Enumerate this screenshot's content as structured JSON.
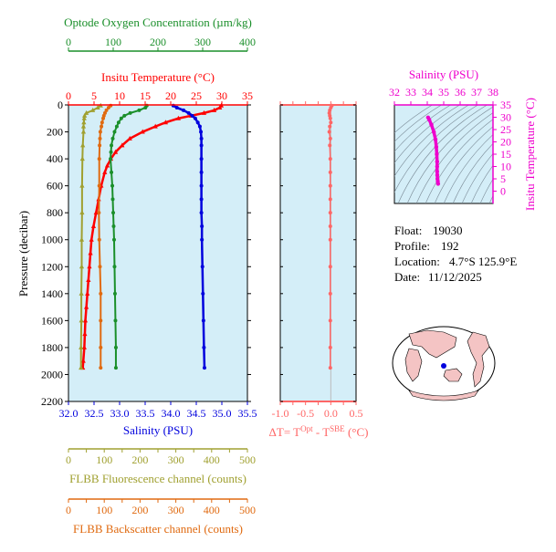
{
  "colors": {
    "oxygen": "#1a8f2a",
    "temperature": "#ff0000",
    "salinity": "#0000dd",
    "fluorescence": "#a0a030",
    "backscatter": "#e06a10",
    "delta_t": "#ff6666",
    "ts_panel": "#ee00cc",
    "plot_bg": "#d4eef8"
  },
  "info": {
    "float_label": "Float:",
    "float_value": "19030",
    "profile_label": "Profile:",
    "profile_value": "192",
    "location_label": "Location:",
    "location_value": "4.7°S  125.9°E",
    "date_label": "Date:",
    "date_value": "11/12/2025"
  },
  "chart_data": [
    {
      "type": "line",
      "id": "main-profile",
      "ylabel": "Pressure (decibar)",
      "ylim": [
        2200,
        0
      ],
      "yticks": [
        0,
        200,
        400,
        600,
        800,
        1000,
        1200,
        1400,
        1600,
        1800,
        2000,
        2200
      ],
      "axes": {
        "oxygen": {
          "label": "Optode Oxygen Concentration (µm/kg)",
          "min": 0,
          "max": 400,
          "ticks": [
            0,
            100,
            200,
            300,
            400
          ]
        },
        "temperature": {
          "label": "Insitu Temperature (°C)",
          "min": 0,
          "max": 35,
          "ticks": [
            0,
            5,
            10,
            15,
            20,
            25,
            30,
            35
          ]
        },
        "salinity": {
          "label": "Salinity (PSU)",
          "min": 32.0,
          "max": 35.5,
          "ticks": [
            "32.0",
            "32.5",
            "33.0",
            "33.5",
            "34.0",
            "34.5",
            "35.0",
            "35.5"
          ]
        },
        "fluorescence": {
          "label": "FLBB Fluorescence channel (counts)",
          "min": 0,
          "max": 500,
          "ticks": [
            0,
            50,
            100,
            150,
            200,
            250,
            300,
            350,
            400,
            450,
            500
          ]
        },
        "backscatter": {
          "label": "FLBB Backscatter channel (counts)",
          "min": 0,
          "max": 500,
          "ticks": [
            0,
            50,
            100,
            150,
            200,
            250,
            300,
            350,
            400,
            450,
            500
          ]
        }
      },
      "series": [
        {
          "key": "temperature",
          "p": [
            5,
            20,
            40,
            60,
            80,
            100,
            130,
            160,
            200,
            250,
            300,
            350,
            400,
            450,
            500,
            600,
            700,
            800,
            900,
            1000,
            1100,
            1200,
            1300,
            1400,
            1500,
            1600,
            1700,
            1800,
            1900,
            1950
          ],
          "v": [
            29.9,
            29.6,
            28.5,
            26.5,
            24,
            21.5,
            19,
            17,
            14.5,
            12,
            10.5,
            9.2,
            8.3,
            7.6,
            7.1,
            6.4,
            5.9,
            5.4,
            4.9,
            4.5,
            4.3,
            4.1,
            3.9,
            3.7,
            3.5,
            3.3,
            3.2,
            3.1,
            2.9,
            2.8
          ]
        },
        {
          "key": "salinity",
          "p": [
            5,
            20,
            40,
            60,
            80,
            100,
            130,
            160,
            200,
            250,
            300,
            400,
            500,
            600,
            700,
            800,
            900,
            1000,
            1200,
            1400,
            1600,
            1800,
            1950
          ],
          "v": [
            34.05,
            34.12,
            34.25,
            34.35,
            34.42,
            34.48,
            34.53,
            34.57,
            34.59,
            34.6,
            34.6,
            34.6,
            34.6,
            34.6,
            34.6,
            34.6,
            34.61,
            34.61,
            34.62,
            34.63,
            34.64,
            34.65,
            34.66
          ]
        },
        {
          "key": "oxygen",
          "p": [
            5,
            20,
            40,
            60,
            80,
            100,
            130,
            160,
            200,
            250,
            300,
            350,
            400,
            500,
            600,
            700,
            800,
            900,
            1000,
            1200,
            1400,
            1600,
            1800,
            1950
          ],
          "v": [
            175,
            172,
            158,
            138,
            125,
            118,
            112,
            108,
            103,
            99,
            96,
            95,
            94,
            96,
            98,
            99,
            100,
            101,
            102,
            103,
            104,
            105,
            106,
            106
          ]
        },
        {
          "key": "fluorescence",
          "p": [
            5,
            20,
            40,
            60,
            80,
            100,
            130,
            160,
            200,
            300,
            400,
            600,
            800,
            1000,
            1200,
            1400,
            1600,
            1800,
            1950
          ],
          "v": [
            90,
            82,
            68,
            50,
            45,
            44,
            43,
            42,
            42,
            40,
            39,
            38,
            38,
            37,
            37,
            36,
            36,
            35,
            35
          ]
        },
        {
          "key": "backscatter",
          "p": [
            5,
            20,
            40,
            60,
            80,
            100,
            130,
            160,
            200,
            250,
            300,
            400,
            600,
            800,
            1000,
            1200,
            1400,
            1600,
            1800,
            1950
          ],
          "v": [
            118,
            112,
            106,
            102,
            99,
            97,
            94,
            92,
            89,
            88,
            87,
            86,
            86,
            85,
            86,
            88,
            90,
            90,
            90,
            90
          ]
        }
      ]
    },
    {
      "type": "scatter",
      "id": "delta-t",
      "xlabel": "ΔT= T^Opt - T^SBE (°C)",
      "xlim": [
        -1.0,
        0.5
      ],
      "xticks": [
        "-1.0",
        "-0.5",
        "0.0",
        "0.5"
      ],
      "ylim": [
        2200,
        0
      ],
      "p": [
        5,
        20,
        40,
        60,
        80,
        100,
        130,
        160,
        200,
        250,
        300,
        400,
        500,
        600,
        700,
        800,
        900,
        1000,
        1200,
        1400,
        1600,
        1800,
        1950
      ],
      "v": [
        0.02,
        0.0,
        -0.02,
        -0.03,
        -0.02,
        -0.01,
        0.0,
        -0.02,
        -0.03,
        -0.01,
        -0.02,
        -0.01,
        -0.01,
        -0.01,
        -0.01,
        -0.01,
        -0.01,
        -0.01,
        -0.01,
        -0.01,
        -0.01,
        -0.01,
        -0.01
      ]
    },
    {
      "type": "line",
      "id": "ts-diagram",
      "xlabel": "Salinity (PSU)",
      "ylabel": "Insitu Temperature (°C)",
      "xlim": [
        32,
        38
      ],
      "ylim": [
        -5,
        35
      ],
      "xticks": [
        32,
        33,
        34,
        35,
        36,
        37,
        38
      ],
      "yticks": [
        0,
        5,
        10,
        15,
        20,
        25,
        30,
        35
      ],
      "s": [
        34.05,
        34.12,
        34.25,
        34.4,
        34.5,
        34.55,
        34.58,
        34.6,
        34.6,
        34.6,
        34.61,
        34.62,
        34.64,
        34.66
      ],
      "t": [
        29.9,
        29.0,
        27.0,
        24.0,
        21.0,
        18.0,
        15.0,
        12.0,
        10.0,
        8.0,
        6.5,
        5.0,
        4.0,
        3.0
      ]
    }
  ]
}
